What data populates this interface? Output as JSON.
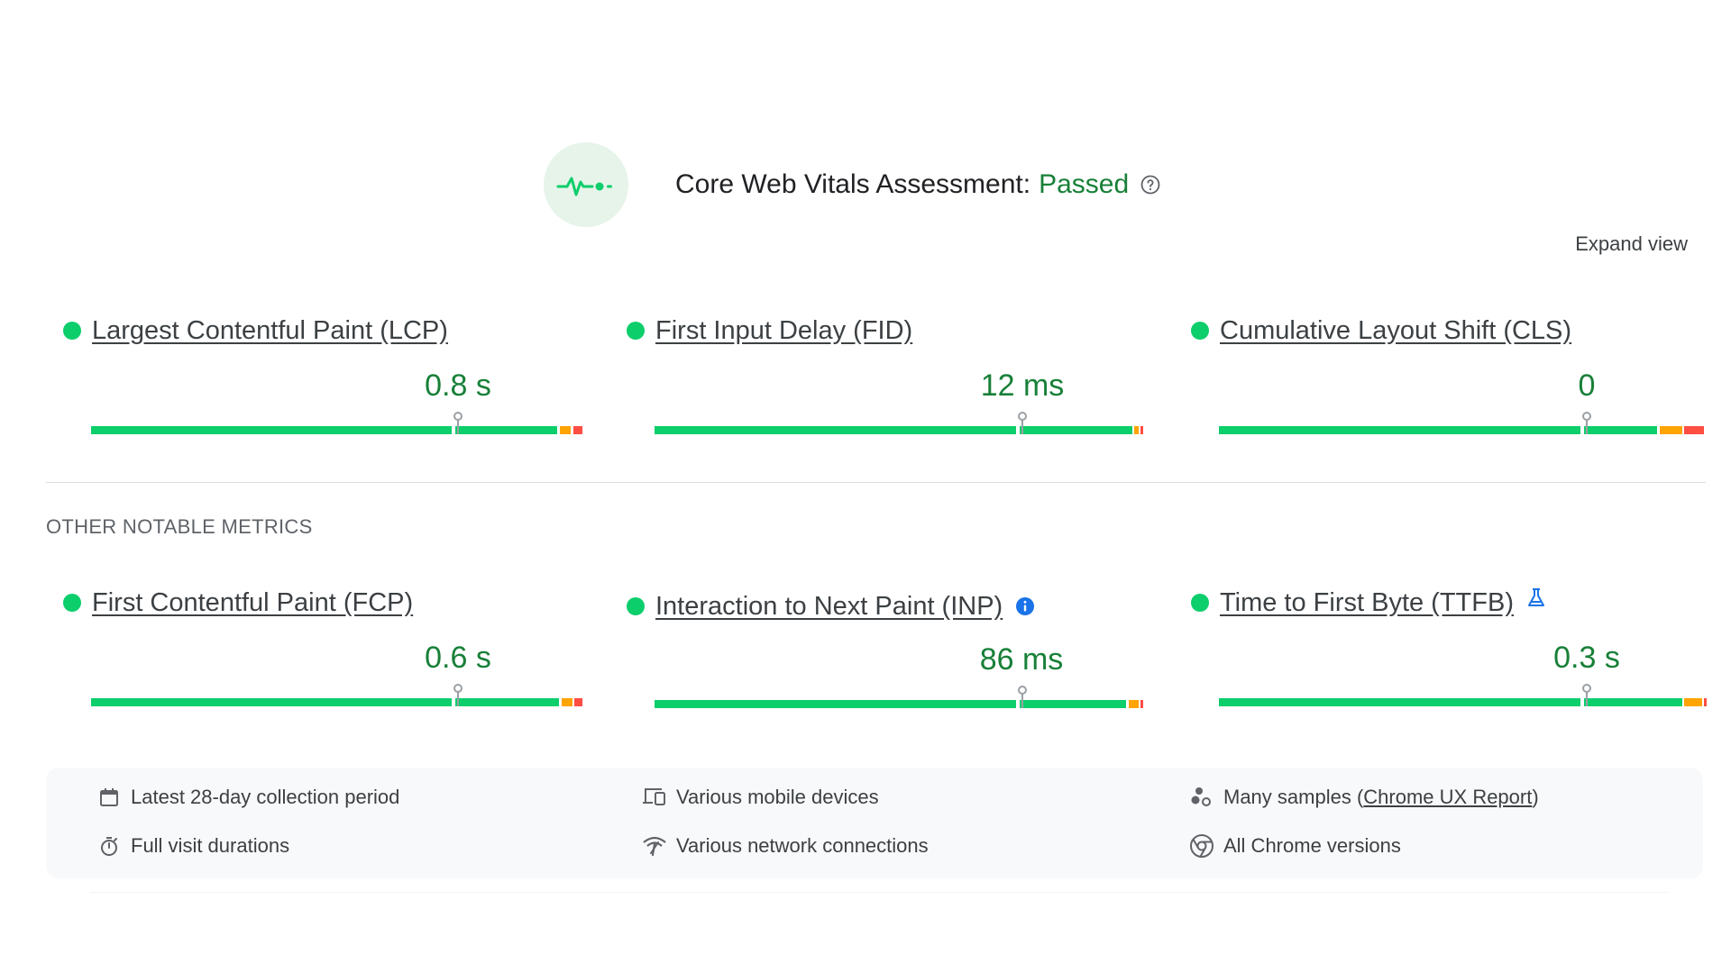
{
  "header": {
    "title": "Core Web Vitals Assessment:",
    "status": "Passed",
    "icon": "vitals-pulse-icon",
    "help_icon": "help-circle-icon",
    "status_color": "#188038"
  },
  "expand_view_label": "Expand view",
  "core_metrics": [
    {
      "name": "Largest Contentful Paint (LCP)",
      "value": "0.8 s",
      "status": "good"
    },
    {
      "name": "First Input Delay (FID)",
      "value": "12 ms",
      "status": "good"
    },
    {
      "name": "Cumulative Layout Shift (CLS)",
      "value": "0",
      "status": "good"
    }
  ],
  "other_section_title": "OTHER NOTABLE METRICS",
  "other_metrics": [
    {
      "name": "First Contentful Paint (FCP)",
      "value": "0.6 s",
      "status": "good"
    },
    {
      "name": "Interaction to Next Paint (INP)",
      "value": "86 ms",
      "status": "good",
      "badge_icon": "info-icon"
    },
    {
      "name": "Time to First Byte (TTFB)",
      "value": "0.3 s",
      "status": "good",
      "badge_icon": "experimental-flask-icon"
    }
  ],
  "footer": {
    "collection_period": "Latest 28-day collection period",
    "visit_durations": "Full visit durations",
    "devices": "Various mobile devices",
    "network": "Various network connections",
    "samples_prefix": "Many samples (",
    "samples_link": "Chrome UX Report",
    "samples_suffix": ")",
    "chrome_versions": "All Chrome versions"
  },
  "colors": {
    "good": "#0cce6b",
    "needs_improvement": "#ffa400",
    "poor": "#ff4e42",
    "value_text": "#188038",
    "info_blue": "#1a73e8"
  }
}
